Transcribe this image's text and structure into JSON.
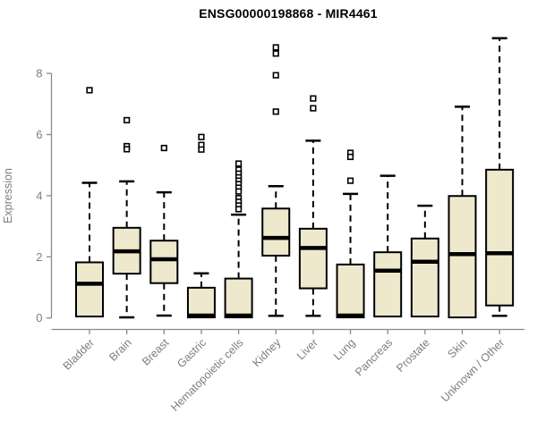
{
  "chart_data": {
    "type": "boxplot",
    "title": "ENSG00000198868 - MIR4461",
    "ylabel": "Expression",
    "xlabel": "",
    "ylim": [
      0,
      9.3
    ],
    "yticks": [
      0,
      2,
      4,
      6,
      8
    ],
    "grid": "off",
    "legend": "none",
    "categories": [
      "Bladder",
      "Brain",
      "Breast",
      "Gastric",
      "Hematopoietic cells",
      "Kidney",
      "Liver",
      "Lung",
      "Pancreas",
      "Prostate",
      "Skin",
      "Unknown / Other"
    ],
    "series": [
      {
        "name": "Bladder",
        "whisker_low": 0.05,
        "q1": 0.05,
        "median": 1.12,
        "q3": 1.82,
        "whisker_high": 4.42,
        "outliers": [
          7.45
        ]
      },
      {
        "name": "Brain",
        "whisker_low": 0.02,
        "q1": 1.45,
        "median": 2.18,
        "q3": 2.95,
        "whisker_high": 4.47,
        "outliers": [
          6.47,
          5.62,
          5.52
        ]
      },
      {
        "name": "Breast",
        "whisker_low": 0.08,
        "q1": 1.14,
        "median": 1.92,
        "q3": 2.53,
        "whisker_high": 4.11,
        "outliers": [
          5.56
        ]
      },
      {
        "name": "Gastric",
        "whisker_low": 0.02,
        "q1": 0.02,
        "median": 0.08,
        "q3": 0.99,
        "whisker_high": 1.46,
        "outliers": [
          5.92,
          5.66,
          5.51
        ]
      },
      {
        "name": "Hematopoietic cells",
        "whisker_low": 0.02,
        "q1": 0.02,
        "median": 0.08,
        "q3": 1.29,
        "whisker_high": 3.38,
        "outliers": [
          5.05,
          4.85,
          4.72,
          4.6,
          4.49,
          4.38,
          4.26,
          4.14,
          3.92,
          3.8,
          3.68,
          3.56
        ]
      },
      {
        "name": "Kidney",
        "whisker_low": 0.07,
        "q1": 2.04,
        "median": 2.62,
        "q3": 3.58,
        "whisker_high": 4.31,
        "outliers": [
          8.85,
          8.65,
          7.94,
          6.75
        ]
      },
      {
        "name": "Liver",
        "whisker_low": 0.07,
        "q1": 0.97,
        "median": 2.29,
        "q3": 2.92,
        "whisker_high": 5.8,
        "outliers": [
          7.18,
          6.86
        ]
      },
      {
        "name": "Lung",
        "whisker_low": 0.02,
        "q1": 0.02,
        "median": 0.08,
        "q3": 1.75,
        "whisker_high": 4.06,
        "outliers": [
          5.4,
          5.27,
          4.49
        ]
      },
      {
        "name": "Pancreas",
        "whisker_low": 0.05,
        "q1": 0.05,
        "median": 1.55,
        "q3": 2.15,
        "whisker_high": 4.65,
        "outliers": []
      },
      {
        "name": "Prostate",
        "whisker_low": 0.05,
        "q1": 0.05,
        "median": 1.84,
        "q3": 2.6,
        "whisker_high": 3.67,
        "outliers": []
      },
      {
        "name": "Skin",
        "whisker_low": 0.02,
        "q1": 0.02,
        "median": 2.09,
        "q3": 3.99,
        "whisker_high": 6.91,
        "outliers": []
      },
      {
        "name": "Unknown / Other",
        "whisker_low": 0.07,
        "q1": 0.41,
        "median": 2.12,
        "q3": 4.85,
        "whisker_high": 9.15,
        "outliers": []
      }
    ],
    "colors": {
      "box_fill": "#EEE8CD",
      "box_border": "#000000",
      "median": "#000000",
      "whisker": "#000000",
      "axis_line": "#8a8a8a",
      "tick_text": "#7e7e7e",
      "title_text": "#000000"
    }
  }
}
